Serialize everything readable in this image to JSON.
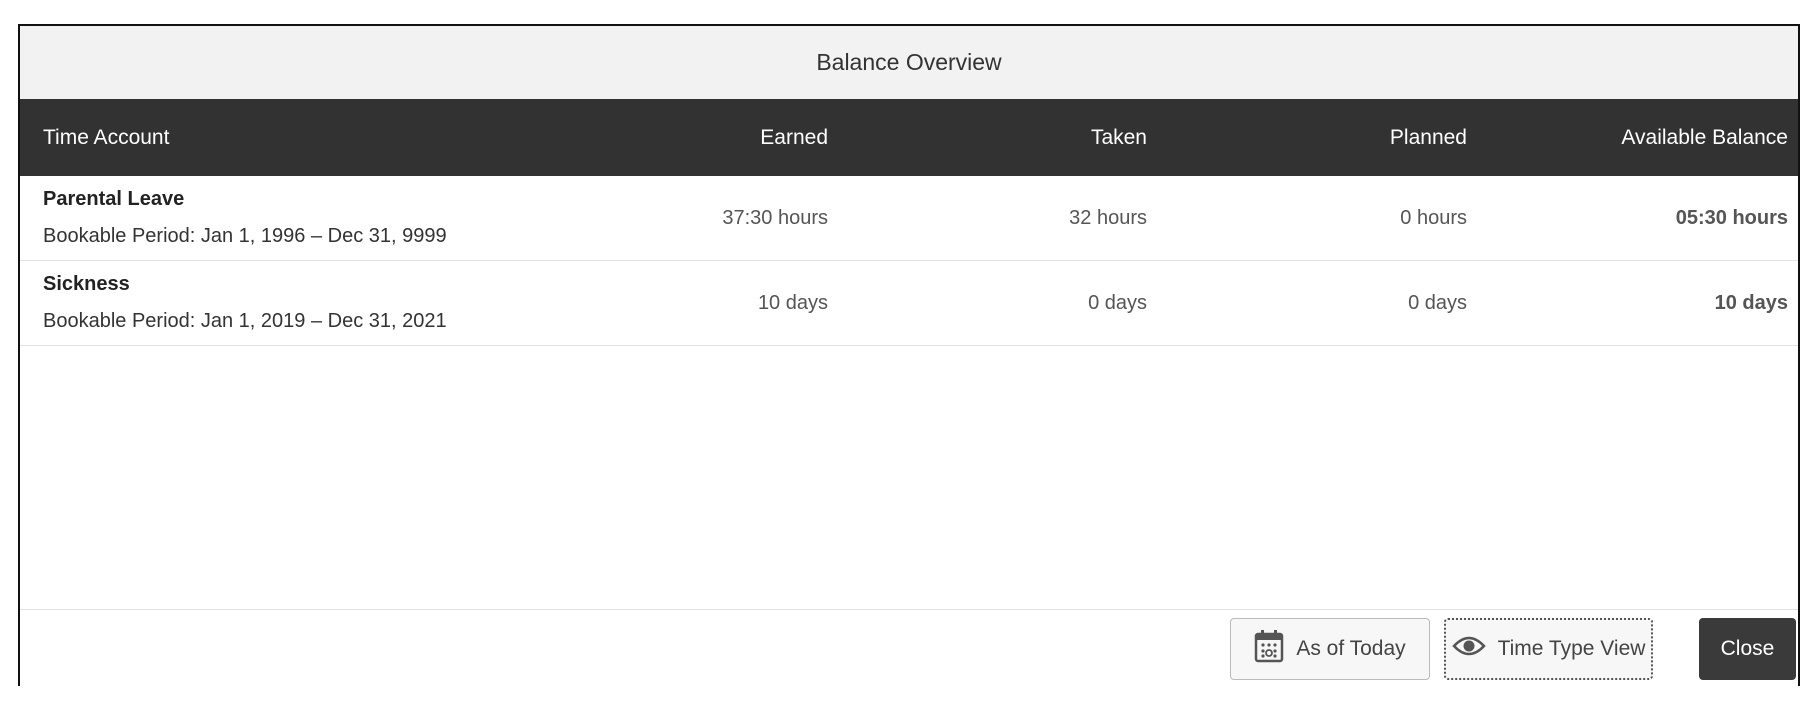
{
  "dialog": {
    "title": "Balance Overview"
  },
  "table": {
    "headers": [
      "Time Account",
      "Earned",
      "Taken",
      "Planned",
      "Available Balance"
    ],
    "rows": [
      {
        "name": "Parental Leave",
        "period": "Bookable Period: Jan 1, 1996 – Dec 31, 9999",
        "earned": "37:30 hours",
        "taken": "32 hours",
        "planned": "0 hours",
        "available": "05:30 hours"
      },
      {
        "name": "Sickness",
        "period": "Bookable Period: Jan 1, 2019 – Dec 31, 2021",
        "earned": "10 days",
        "taken": "0 days",
        "planned": "0 days",
        "available": "10 days"
      }
    ]
  },
  "footer": {
    "as_of_today": {
      "label": "As of Today",
      "icon": "calendar-icon"
    },
    "time_type_view": {
      "label": "Time Type View",
      "icon": "eye-icon"
    },
    "close": {
      "label": "Close"
    }
  },
  "colors": {
    "header_bg": "#323232",
    "title_bg": "#f2f2f2",
    "primary_button": "#3a3a3a"
  }
}
